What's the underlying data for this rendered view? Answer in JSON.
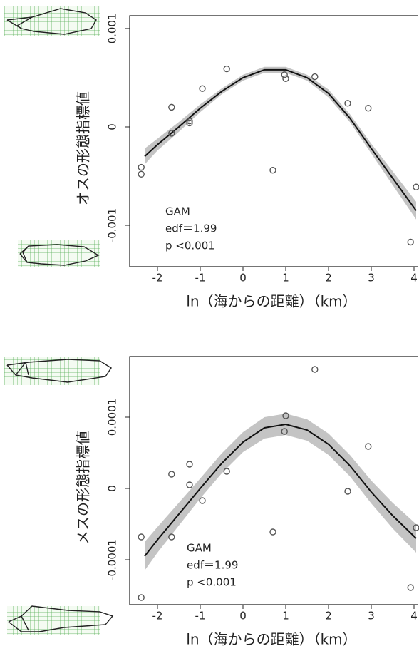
{
  "chart_data": [
    {
      "type": "scatter",
      "xlabel": "ln（海からの距離）（km）",
      "ylabel": "オスの形態指標値",
      "annotation": [
        "GAM",
        "edf＝1.99",
        "p <0.001"
      ],
      "xlim": [
        -2.65,
        4.1
      ],
      "xticks": [
        -2,
        -1,
        0,
        1,
        2,
        3,
        4
      ],
      "ylim": [
        -0.00142,
        0.00113
      ],
      "yticks": [
        0.001,
        0,
        -0.001
      ],
      "x": [
        -2.38,
        -2.38,
        -1.67,
        -1.67,
        -1.25,
        -1.25,
        -0.95,
        -0.38,
        0.7,
        0.97,
        1.0,
        1.68,
        2.45,
        2.93,
        4.05,
        3.92
      ],
      "values": [
        -0.00041,
        -0.00048,
        -6.5e-05,
        0.0002,
        6e-05,
        4e-05,
        0.00039,
        0.00059,
        -0.00044,
        0.00053,
        0.00049,
        0.00051,
        0.00024,
        0.00019,
        -0.00061,
        -0.00117
      ],
      "color": "#555555",
      "fit": {
        "x": [
          -2.3,
          -2,
          -1.5,
          -1,
          -0.5,
          0,
          0.5,
          1,
          1.5,
          2,
          2.5,
          3,
          3.5,
          4.05
        ],
        "values": [
          -0.0003,
          -0.00018,
          0,
          0.00019,
          0.00036,
          0.0005,
          0.00058,
          0.00058,
          0.0005,
          0.00034,
          9e-05,
          -0.00022,
          -0.00052,
          -0.00085
        ],
        "lower": [
          -0.00038,
          -0.00024,
          -5e-05,
          0.00015,
          0.00033,
          0.00047,
          0.00055,
          0.00055,
          0.00047,
          0.0003,
          5e-05,
          -0.00027,
          -0.00059,
          -0.00094
        ],
        "upper": [
          -0.00022,
          -0.00012,
          5e-05,
          0.00023,
          0.00039,
          0.00053,
          0.00061,
          0.00061,
          0.00053,
          0.00038,
          0.00013,
          -0.00017,
          -0.00045,
          -0.00076
        ],
        "color": "#111111",
        "band_color": "#c4c4c4"
      }
    },
    {
      "type": "scatter",
      "xlabel": "ln（海からの距離）（km）",
      "ylabel": "メスの形態指標値",
      "annotation": [
        "GAM",
        "edf＝1.99",
        "p <0.001"
      ],
      "xlim": [
        -2.65,
        4.1
      ],
      "xticks": [
        -2,
        -1,
        0,
        1,
        2,
        3,
        4
      ],
      "ylim": [
        -0.000163,
        0.000185
      ],
      "yticks": [
        0.0001,
        0,
        -0.0001
      ],
      "x": [
        -2.38,
        -2.38,
        -1.67,
        -1.67,
        -1.25,
        -1.25,
        -0.95,
        -0.38,
        0.7,
        0.97,
        1.0,
        1.68,
        2.45,
        2.93,
        4.05,
        3.92
      ],
      "values": [
        -6.8e-05,
        -0.000153,
        2e-05,
        -6.8e-05,
        3.4e-05,
        5e-06,
        -1.7e-05,
        2.4e-05,
        -6.1e-05,
        8e-05,
        0.000102,
        0.000167,
        -4e-06,
        5.9e-05,
        -5.5e-05,
        -0.000139
      ],
      "color": "#555555",
      "fit": {
        "x": [
          -2.3,
          -2,
          -1.5,
          -1,
          -0.5,
          0,
          0.5,
          1,
          1.5,
          2,
          2.5,
          3,
          3.5,
          4.05
        ],
        "values": [
          -9.5e-05,
          -7.2e-05,
          -3.6e-05,
          0,
          3.5e-05,
          6.5e-05,
          8.5e-05,
          9e-05,
          8.2e-05,
          6.2e-05,
          3.2e-05,
          -5e-06,
          -3.8e-05,
          -7e-05
        ],
        "lower": [
          -0.000115,
          -9e-05,
          -5.2e-05,
          -1.4e-05,
          2.1e-05,
          5.1e-05,
          7e-05,
          7.5e-05,
          6.7e-05,
          4.7e-05,
          1.7e-05,
          -2.1e-05,
          -5.6e-05,
          -9e-05
        ],
        "upper": [
          -7.5e-05,
          -5.4e-05,
          -2e-05,
          1.4e-05,
          4.9e-05,
          7.9e-05,
          0.0001,
          0.000105,
          9.7e-05,
          7.7e-05,
          4.7e-05,
          1.1e-05,
          -2e-05,
          -5e-05
        ],
        "color": "#111111",
        "band_color": "#c4c4c4"
      }
    }
  ]
}
